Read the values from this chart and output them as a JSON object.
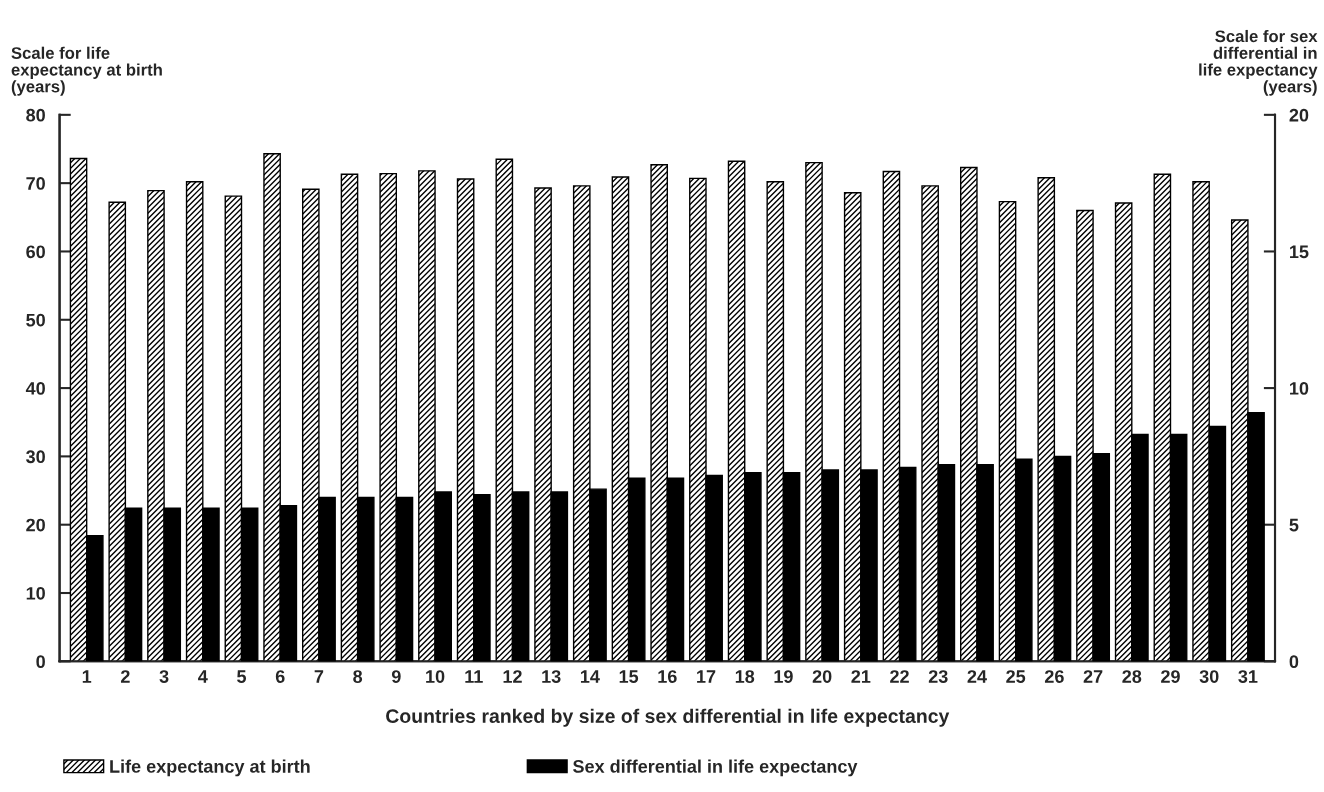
{
  "chart_data": {
    "type": "bar",
    "xlabel": "Countries ranked by size of sex differential in life expectancy",
    "ylabel": "Scale for life\nexpectancy at birth\n(years)",
    "y2label": "Scale for sex\ndifferential in\nlife expectancy\n(years)",
    "categories": [
      "1",
      "2",
      "3",
      "4",
      "5",
      "6",
      "7",
      "8",
      "9",
      "10",
      "11",
      "12",
      "13",
      "14",
      "15",
      "16",
      "17",
      "18",
      "19",
      "20",
      "21",
      "22",
      "23",
      "24",
      "25",
      "26",
      "27",
      "28",
      "29",
      "30",
      "31"
    ],
    "series": [
      {
        "name": "Life expectancy at birth",
        "color": "#000000",
        "values": [
          73.6,
          67.2,
          68.9,
          70.2,
          68.1,
          74.3,
          69.1,
          71.3,
          71.4,
          71.8,
          70.6,
          73.5,
          69.3,
          69.6,
          70.9,
          72.7,
          70.7,
          73.2,
          70.2,
          73.0,
          68.6,
          71.7,
          69.6,
          72.3,
          67.3,
          70.8,
          66.0,
          67.1,
          71.3,
          70.2,
          64.6
        ]
      },
      {
        "name": "Sex differential in life expectancy",
        "color": "#000000",
        "axis": "y2",
        "values": [
          4.6,
          5.6,
          5.6,
          5.6,
          5.6,
          5.7,
          6.0,
          6.0,
          6.0,
          6.2,
          6.1,
          6.2,
          6.2,
          6.3,
          6.7,
          6.7,
          6.8,
          6.9,
          6.9,
          7.0,
          7.0,
          7.1,
          7.2,
          7.2,
          7.4,
          7.5,
          7.6,
          8.3,
          8.3,
          8.6,
          9.1
        ]
      }
    ],
    "ylim": [
      0,
      80
    ],
    "yticks": [
      0,
      10,
      20,
      30,
      40,
      50,
      60,
      70,
      80
    ],
    "y2lim": [
      0,
      20
    ],
    "y2ticks": [
      0,
      5,
      10,
      15,
      20
    ],
    "grid": false,
    "legend": "bottom"
  }
}
